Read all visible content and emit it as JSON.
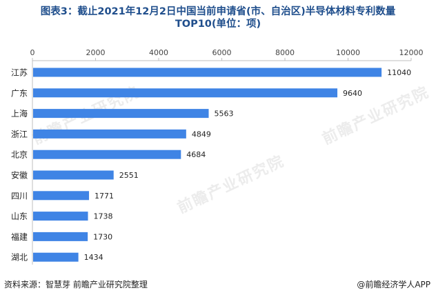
{
  "title": {
    "line1": "图表3：截止2021年12月2日中国当前申请省(市、自治区)半导体材料专利数量",
    "line2": "TOP10(单位：项)"
  },
  "chart_data": {
    "type": "bar",
    "orientation": "horizontal",
    "title": "图表3：截止2021年12月2日中国当前申请省(市、自治区)半导体材料专利数量TOP10(单位：项)",
    "categories": [
      "江苏",
      "广东",
      "上海",
      "浙江",
      "北京",
      "安徽",
      "四川",
      "山东",
      "福建",
      "湖北"
    ],
    "values": [
      11040,
      9640,
      5563,
      4849,
      4684,
      2551,
      1771,
      1738,
      1730,
      1434
    ],
    "xlim": [
      0,
      12000
    ],
    "xticks": [
      0,
      2000,
      4000,
      6000,
      8000,
      10000,
      12000
    ],
    "bar_color": "#3f84e5",
    "axis_position": "top",
    "grid": false
  },
  "footer": {
    "source": "资料来源：智慧芽 前瞻产业研究院整理",
    "credit": "@前瞻经济学人APP"
  },
  "watermark": "前瞻产业研究院"
}
